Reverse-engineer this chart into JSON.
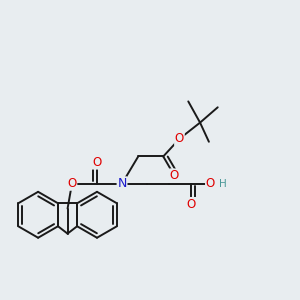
{
  "background_color": "#e8edf0",
  "bond_color": "#1a1a1a",
  "bond_width": 1.4,
  "atom_colors": {
    "O": "#e00000",
    "N": "#1a1acc",
    "H": "#4a9898"
  },
  "font_size": 8.5,
  "fig_size": [
    3.0,
    3.0
  ],
  "dpi": 100
}
